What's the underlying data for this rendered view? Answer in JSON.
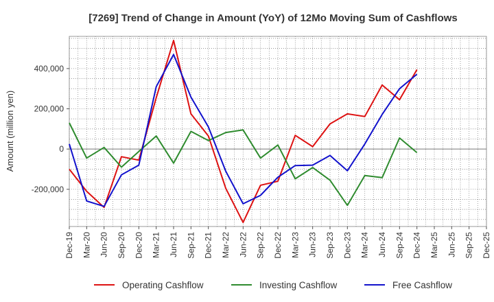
{
  "chart_data": {
    "type": "line",
    "title": "[7269]  Trend of Change in Amount (YoY) of 12Mo Moving Sum of Cashflows",
    "xlabel": "",
    "ylabel": "Amount (million yen)",
    "ylim": [
      -385000,
      560000
    ],
    "yticks": [
      -200000,
      0,
      200000,
      400000
    ],
    "ytick_labels": [
      "-200,000",
      "0",
      "200,000",
      "400,000"
    ],
    "categories": [
      "Dec-19",
      "Mar-20",
      "Jun-20",
      "Sep-20",
      "Dec-20",
      "Mar-21",
      "Jun-21",
      "Sep-21",
      "Dec-21",
      "Mar-22",
      "Jun-22",
      "Sep-22",
      "Dec-22",
      "Mar-23",
      "Jun-23",
      "Sep-23",
      "Dec-23",
      "Mar-24",
      "Jun-24",
      "Sep-24",
      "Dec-24",
      "Mar-25",
      "Jun-25",
      "Sep-25",
      "Dec-25"
    ],
    "grid": true,
    "legend_position": "bottom",
    "series": [
      {
        "name": "Operating Cashflow",
        "color": "#dd1111",
        "values": [
          -100000,
          -210000,
          -290000,
          -38000,
          -55000,
          255000,
          540000,
          175000,
          65000,
          -195000,
          -365000,
          -180000,
          -160000,
          68000,
          12000,
          125000,
          175000,
          162000,
          318000,
          245000,
          395000,
          null,
          null,
          null,
          null
        ]
      },
      {
        "name": "Investing Cashflow",
        "color": "#2e8b2e",
        "values": [
          130000,
          -45000,
          8000,
          -90000,
          -12000,
          65000,
          -70000,
          88000,
          42000,
          82000,
          95000,
          -45000,
          20000,
          -148000,
          -92000,
          -155000,
          -280000,
          -132000,
          -142000,
          55000,
          -18000,
          null,
          null,
          null,
          null
        ]
      },
      {
        "name": "Free Cashflow",
        "color": "#1111cc",
        "values": [
          25000,
          -258000,
          -285000,
          -128000,
          -80000,
          310000,
          470000,
          258000,
          110000,
          -110000,
          -272000,
          -230000,
          -140000,
          -82000,
          -80000,
          -32000,
          -108000,
          25000,
          172000,
          300000,
          372000,
          null,
          null,
          null,
          null
        ]
      }
    ]
  }
}
